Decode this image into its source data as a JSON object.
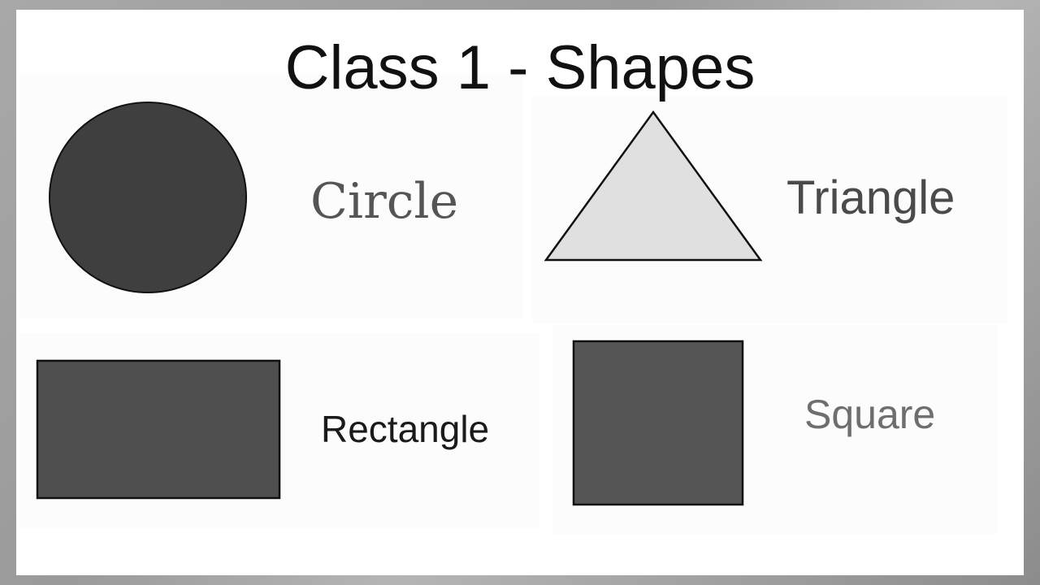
{
  "title": "Class 1 - Shapes",
  "shapes": {
    "circle": {
      "label": "Circle",
      "fill": "#3f3f3f"
    },
    "triangle": {
      "label": "Triangle",
      "fill": "#e0e0e0"
    },
    "rectangle": {
      "label": "Rectangle",
      "fill": "#4f4f4f"
    },
    "square": {
      "label": "Square",
      "fill": "#555555"
    }
  },
  "colors": {
    "outline": "#111111",
    "card_background": "#ffffff",
    "frame": "#9a9a9a"
  }
}
